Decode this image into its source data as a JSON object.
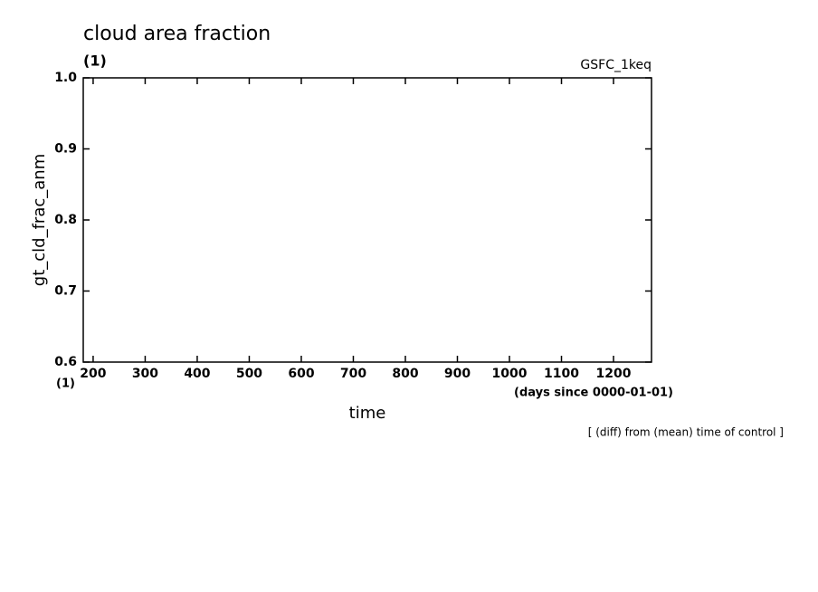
{
  "chart_data": {
    "type": "line",
    "title": "cloud area fraction",
    "y_units": "(1)",
    "run_label": "GSFC_1keq",
    "y_label": "gt_cld_frac_anm",
    "x_label": "time",
    "x_units": "(1)",
    "x_time_units": "(days since 0000-01-01)",
    "note": "[ (diff) from (mean) time of control ]",
    "xlim": [
      181,
      1273
    ],
    "xticks": [
      200,
      300,
      400,
      500,
      600,
      700,
      800,
      900,
      1000,
      1100,
      1200
    ],
    "ylim": [
      0.6,
      1.0
    ],
    "yticks": [
      {
        "value": 0.6,
        "label": "0.6"
      },
      {
        "value": 0.7,
        "label": "0.7"
      },
      {
        "value": 0.8,
        "label": "0.8"
      },
      {
        "value": 0.9,
        "label": "0.9"
      },
      {
        "value": 1.0,
        "label": "1.0"
      }
    ],
    "series": []
  }
}
